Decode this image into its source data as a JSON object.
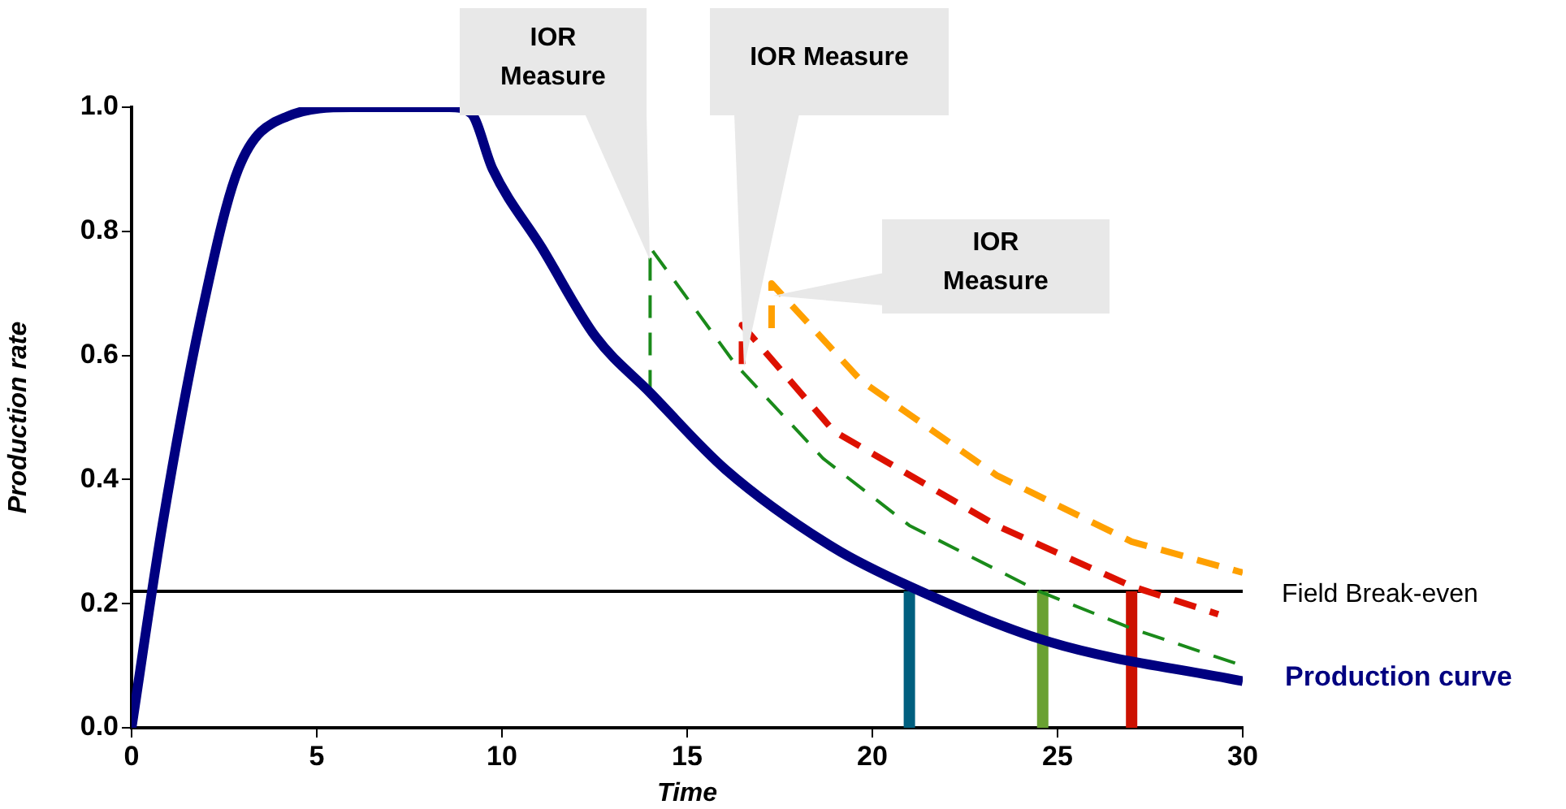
{
  "chart_data": {
    "type": "line",
    "xlabel": "Time",
    "ylabel": "Production rate",
    "xlim": [
      0,
      30
    ],
    "xticks": [
      0,
      5,
      10,
      15,
      20,
      25,
      30
    ],
    "ylim": [
      0,
      1
    ],
    "yticks": [
      {
        "value": 0,
        "label": "0.0"
      },
      0.2,
      0.4,
      0.6,
      0.8,
      {
        "value": 1,
        "label": "1.0"
      }
    ],
    "grid": false,
    "legend": false,
    "marker": "none",
    "series": [
      {
        "name": "Production curve",
        "color": "#000080",
        "line_style": "solid",
        "x": [
          0,
          0.83,
          1.86,
          2.88,
          4.2,
          5.95,
          8.58,
          9.17,
          9.75,
          11.07,
          12.53,
          14,
          16.04,
          18.96,
          21,
          24.8,
          30
        ],
        "values": [
          0,
          0.326,
          0.658,
          0.9,
          0.985,
          1.0,
          1.0,
          0.99,
          0.9,
          0.774,
          0.63,
          0.54,
          0.416,
          0.29,
          0.228,
          0.138,
          0.075
        ]
      },
      {
        "color": "#1a8a1a",
        "line_style": "dashed",
        "x": [
          14,
          14,
          16.3,
          18.67,
          21,
          24.5,
          27,
          30
        ],
        "values": [
          0.54,
          0.774,
          0.586,
          0.434,
          0.326,
          0.22,
          0.16,
          0.1
        ]
      },
      {
        "color": "#dd1100",
        "line_style": "dashed",
        "x": [
          16.48,
          16.48,
          18.96,
          23.35,
          27,
          29.34
        ],
        "values": [
          0.586,
          0.649,
          0.478,
          0.326,
          0.228,
          0.183
        ]
      },
      {
        "color": "#ffa000",
        "line_style": "dashed",
        "x": [
          17.28,
          17.28,
          19.7,
          23.35,
          27,
          30
        ],
        "values": [
          0.644,
          0.716,
          0.559,
          0.407,
          0.3,
          0.25
        ]
      },
      {
        "color": "#005f7f",
        "line_style": "solid",
        "x": [
          21,
          21
        ],
        "values": [
          0,
          0.22
        ]
      },
      {
        "color": "#6aa132",
        "line_style": "solid",
        "x": [
          24.6,
          24.6
        ],
        "values": [
          0,
          0.22
        ]
      },
      {
        "color": "#cc1100",
        "line_style": "solid",
        "x": [
          27,
          27
        ],
        "values": [
          0,
          0.22
        ]
      }
    ],
    "ref_lines": [
      {
        "axis": "y",
        "value": 0.22,
        "label": "Field Break-even",
        "color": "#000000"
      }
    ],
    "annotations": [
      "IOR Measure",
      "IOR Measure",
      "IOR Measure"
    ]
  }
}
